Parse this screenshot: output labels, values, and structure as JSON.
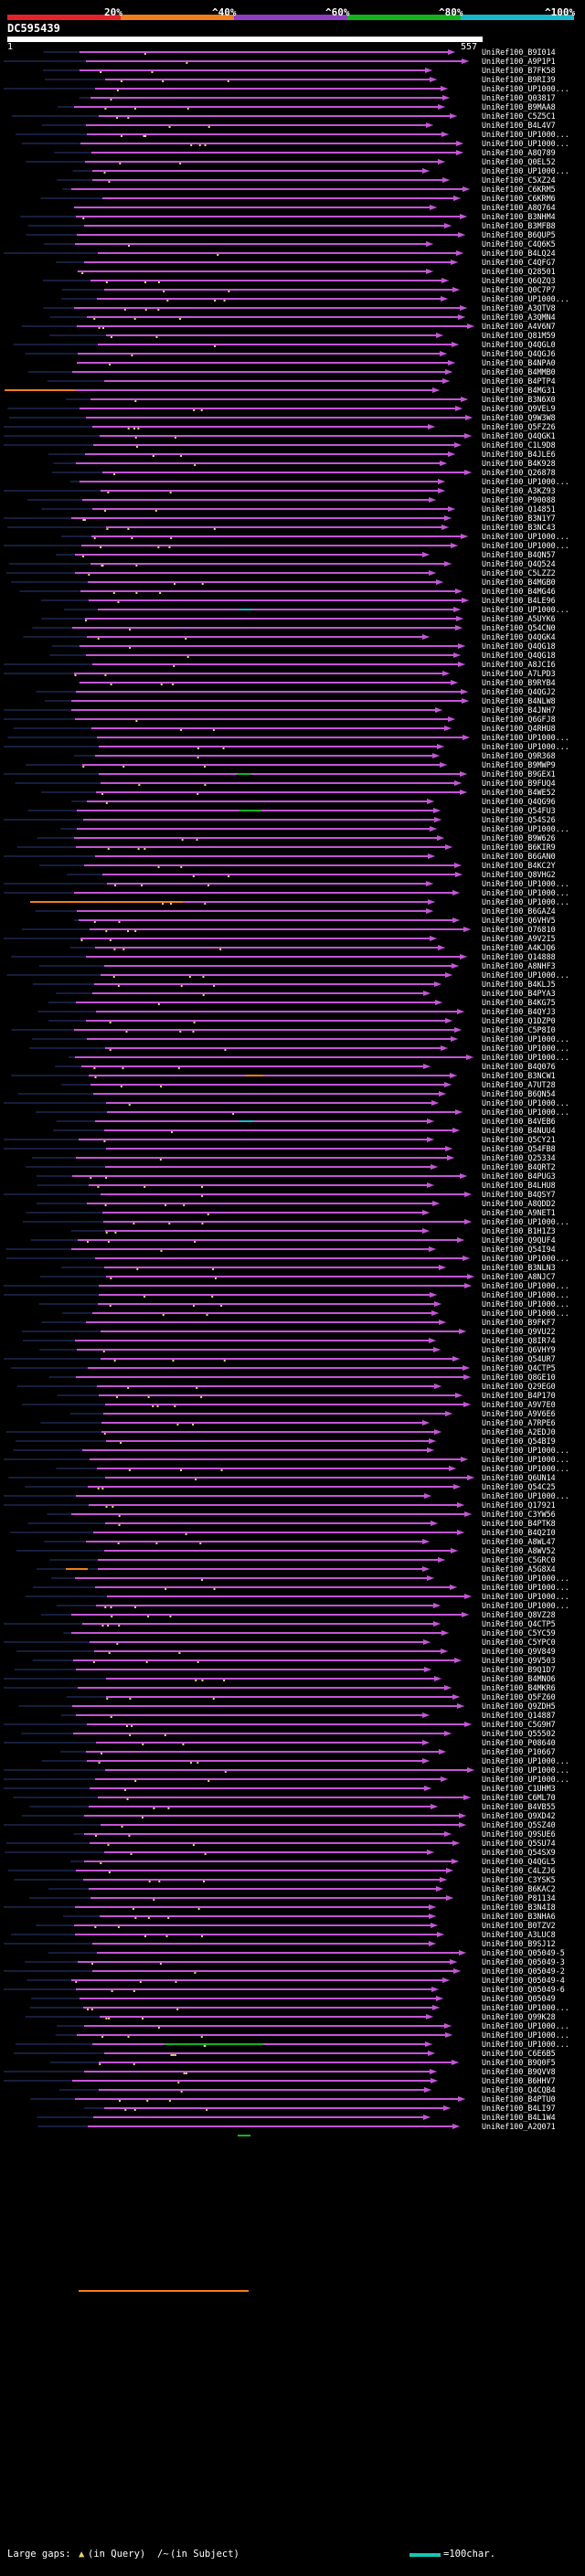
{
  "header": {
    "query_id": "DC595439",
    "ruler_start": "1",
    "ruler_end": "557",
    "identity_scale": [
      {
        "label": "20%",
        "color": "#e3232a"
      },
      {
        "label": "^40%",
        "color": "#f07e1b"
      },
      {
        "label": "^60%",
        "color": "#8e3ec3"
      },
      {
        "label": "^80%",
        "color": "#16b21d"
      },
      {
        "label": "^100%",
        "color": "#18b8cc"
      }
    ]
  },
  "colors": {
    "background": "#000000",
    "hit_line": "#c455d6",
    "gap_line": "#2c3a7a",
    "insert_mark": "#e8d36a",
    "highlight_orange": "#f07e1b",
    "highlight_green": "#16b21d",
    "highlight_cyan": "#18b8cc"
  },
  "hits": [
    "UniRef100_B9I014",
    "UniRef100_A9P1P1",
    "UniRef100_B7FK58",
    "UniRef100_B9RI39",
    "UniRef100_UP1000...",
    "UniRef100_Q03817",
    "UniRef100_B9MAA8",
    "UniRef100_C5Z5C1",
    "UniRef100_B4L4V7",
    "UniRef100_UP1000...",
    "UniRef100_UP1000...",
    "UniRef100_A8Q789",
    "UniRef100_Q0EL52",
    "UniRef100_UP1000...",
    "UniRef100_C5XZ24",
    "UniRef100_C6KRM5",
    "UniRef100_C6KRM6",
    "UniRef100_A8Q764",
    "UniRef100_B3NHM4",
    "UniRef100_B3MFB8",
    "UniRef100_B6QUP5",
    "UniRef100_C4Q6K5",
    "UniRef100_B4LQ24",
    "UniRef100_C4QFG7",
    "UniRef100_Q28501",
    "UniRef100_Q6QZQ3",
    "UniRef100_Q0C7P7",
    "UniRef100_UP1000...",
    "UniRef100_A3QTV8",
    "UniRef100_A3QMN4",
    "UniRef100_A4V6N7",
    "UniRef100_Q81M59",
    "UniRef100_Q4QGL0",
    "UniRef100_Q4QGJ6",
    "UniRef100_B4NPA0",
    "UniRef100_B4MMB0",
    "UniRef100_B4PTP4",
    "UniRef100_B4MG31",
    "UniRef100_B3N6X0",
    "UniRef100_Q9VEL9",
    "UniRef100_Q9W3W8",
    "UniRef100_Q5FZ26",
    "UniRef100_Q4QGK1",
    "UniRef100_C1L9D8",
    "UniRef100_B4JLE6",
    "UniRef100_B4K928",
    "UniRef100_Q26878",
    "UniRef100_UP1000...",
    "UniRef100_A3KZ93",
    "UniRef100_P90088",
    "UniRef100_Q14851",
    "UniRef100_B3N1Y7",
    "UniRef100_B3NC43",
    "UniRef100_UP1000...",
    "UniRef100_UP1000...",
    "UniRef100_B4QN57",
    "UniRef100_Q4Q524",
    "UniRef100_C5LZZ2",
    "UniRef100_B4MGB0",
    "UniRef100_B4MG46",
    "UniRef100_B4LE96",
    "UniRef100_UP1000...",
    "UniRef100_A5UYK6",
    "UniRef100_Q54CN0",
    "UniRef100_Q4QGK4",
    "UniRef100_Q4QG18",
    "UniRef100_Q4QG18",
    "UniRef100_A8JCI6",
    "UniRef100_A7LPD3",
    "UniRef100_B9RYB4",
    "UniRef100_Q4QGJ2",
    "UniRef100_B4NLW8",
    "UniRef100_B4JNH7",
    "UniRef100_Q6GFJ8",
    "UniRef100_Q4RHU8",
    "UniRef100_UP1000...",
    "UniRef100_UP1000...",
    "UniRef100_Q9R368",
    "UniRef100_B9MWP9",
    "UniRef100_B9GEX1",
    "UniRef100_B9FUQ4",
    "UniRef100_B4WE52",
    "UniRef100_Q4QG96",
    "UniRef100_Q54FU3",
    "UniRef100_Q54S26",
    "UniRef100_UP1000...",
    "UniRef100_B9W626",
    "UniRef100_B6KIR9",
    "UniRef100_B6GAN0",
    "UniRef100_B4KC2Y",
    "UniRef100_Q8VHG2",
    "UniRef100_UP1000...",
    "UniRef100_UP1000...",
    "UniRef100_UP1000...",
    "UniRef100_B6GAZ4",
    "UniRef100_Q6VHV5",
    "UniRef100_O76810",
    "UniRef100_A9V2I5",
    "UniRef100_A4KJQ6",
    "UniRef100_Q14888",
    "UniRef100_A8NHF3",
    "UniRef100_UP1000...",
    "UniRef100_B4KLJ5",
    "UniRef100_B4PYA3",
    "UniRef100_B4KG75",
    "UniRef100_B4QYJ3",
    "UniRef100_Q1DZP0",
    "UniRef100_C5P8I0",
    "UniRef100_UP1000...",
    "UniRef100_UP1000...",
    "UniRef100_UP1000...",
    "UniRef100_B4Q076",
    "UniRef100_B3NCW1",
    "UniRef100_A7UT28",
    "UniRef100_B6QN54",
    "UniRef100_UP1000...",
    "UniRef100_UP1000...",
    "UniRef100_B4VEB6",
    "UniRef100_B4NUU4",
    "UniRef100_Q5CY21",
    "UniRef100_Q54FB8",
    "UniRef100_Q25334",
    "UniRef100_B4QRT2",
    "UniRef100_B4PUG3",
    "UniRef100_B4LHU8",
    "UniRef100_B4QSY7",
    "UniRef100_A8QDD2",
    "UniRef100_A9NET1",
    "UniRef100_UP1000...",
    "UniRef100_B1H1Z3",
    "UniRef100_Q9QUF4",
    "UniRef100_Q54I94",
    "UniRef100_UP1000...",
    "UniRef100_B3NLN3",
    "UniRef100_A8NJC7",
    "UniRef100_UP1000...",
    "UniRef100_UP1000...",
    "UniRef100_UP1000...",
    "UniRef100_UP1000...",
    "UniRef100_B9FKF7",
    "UniRef100_Q9VU22",
    "UniRef100_Q8IR74",
    "UniRef100_Q6VHY9",
    "UniRef100_Q54UR7",
    "UniRef100_Q4CTP5",
    "UniRef100_Q8GE10",
    "UniRef100_Q29EG0",
    "UniRef100_B4P170",
    "UniRef100_A9V7E0",
    "UniRef100_A9V6E6",
    "UniRef100_A7RPE6",
    "UniRef100_A2EDJ0",
    "UniRef100_Q54BI9",
    "UniRef100_UP1000...",
    "UniRef100_UP1000...",
    "UniRef100_UP1000...",
    "UniRef100_Q6UN14",
    "UniRef100_Q54C25",
    "UniRef100_UP1000...",
    "UniRef100_Q17921",
    "UniRef100_C3YW56",
    "UniRef100_B4PTK8",
    "UniRef100_B4Q2I0",
    "UniRef100_A8WL47",
    "UniRef100_A8WV52",
    "UniRef100_C5GRC0",
    "UniRef100_A5G8X4",
    "UniRef100_UP1000...",
    "UniRef100_UP1000...",
    "UniRef100_UP1000...",
    "UniRef100_UP1000...",
    "UniRef100_Q8VZ28",
    "UniRef100_Q4CTP5",
    "UniRef100_C5YC59",
    "UniRef100_C5YPC0",
    "UniRef100_Q9V849",
    "UniRef100_Q9V503",
    "UniRef100_B9Q1D7",
    "UniRef100_B4MNO6",
    "UniRef100_B4MKR6",
    "UniRef100_Q5FZ60",
    "UniRef100_Q9ZDH5",
    "UniRef100_Q14887",
    "UniRef100_C5G9H7",
    "UniRef100_Q55502",
    "UniRef100_P08640",
    "UniRef100_P10667",
    "UniRef100_UP1000...",
    "UniRef100_UP1000...",
    "UniRef100_UP1000...",
    "UniRef100_C1UHM3",
    "UniRef100_C6ML70",
    "UniRef100_B4VB55",
    "UniRef100_Q9XD42",
    "UniRef100_Q5SZ40",
    "UniRef100_Q9SUE6",
    "UniRef100_Q5SU74",
    "UniRef100_Q54SX9",
    "UniRef100_Q4QGL5",
    "UniRef100_C4LZJ6",
    "UniRef100_C3YSK5",
    "UniRef100_B6KAC2",
    "UniRef100_P81134",
    "UniRef100_B3N4I8",
    "UniRef100_B3NHA6",
    "UniRef100_B0TZV2",
    "UniRef100_A3LUC8",
    "UniRef100_B9SJ12",
    "UniRef100_Q05049-5",
    "UniRef100_Q05049-3",
    "UniRef100_Q05049-2",
    "UniRef100_Q05049-4",
    "UniRef100_Q05049-6",
    "UniRef100_Q05049",
    "UniRef100_UP1000...",
    "UniRef100_Q99K28",
    "UniRef100_UP1000...",
    "UniRef100_UP1000...",
    "UniRef100_UP1000...",
    "UniRef100_C6E6B5",
    "UniRef100_B9Q0F5",
    "UniRef100_B9QVV8",
    "UniRef100_B6HHV7",
    "UniRef100_Q4CQB4",
    "UniRef100_B4PTU0",
    "UniRef100_B4LI97",
    "UniRef100_B4L1W4",
    "UniRef100_A2Q071"
  ],
  "legend": {
    "text": "Large gaps:",
    "query_marker": "▲",
    "in_query": "(in Query)",
    "in_subject": "(in Subject)",
    "subject_marker": "/~",
    "scale_label": "=100char."
  }
}
